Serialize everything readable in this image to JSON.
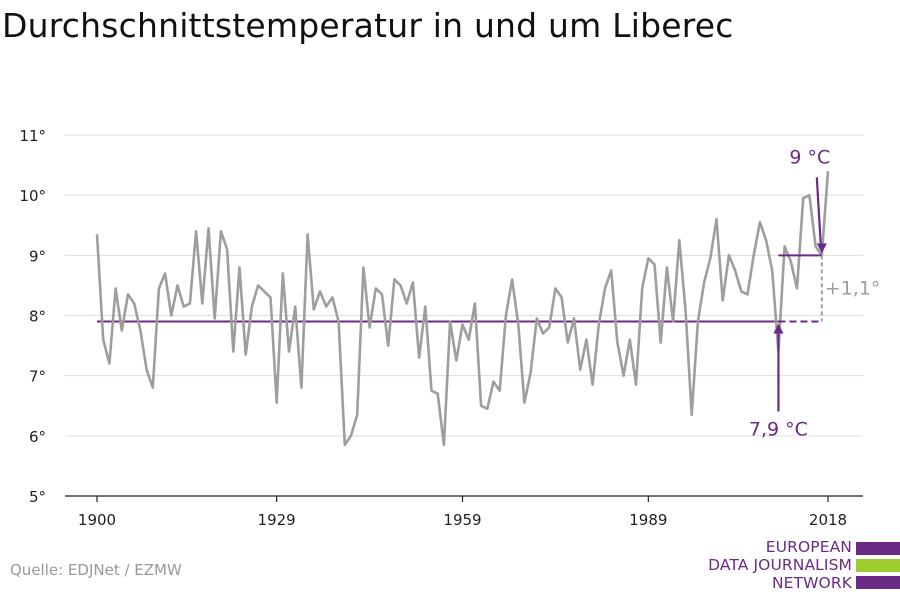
{
  "title": "Durchschnittstemperatur in und um Liberec",
  "source": "Quelle: EDJNet / EZMW",
  "logo": {
    "lines": [
      "EUROPEAN",
      "DATA JOURNALISM",
      "NETWORK"
    ],
    "colors": [
      "#6b2a86",
      "#9ccc30",
      "#6b2a86"
    ]
  },
  "colors": {
    "series": "#9e9e9e",
    "accent": "#6b2a86",
    "diff": "#9e9e9e",
    "grid": "#dddddd",
    "axis": "#222222"
  },
  "chart_data": {
    "type": "line",
    "title": "Durchschnittstemperatur in und um Liberec",
    "xlabel": "",
    "ylabel": "",
    "xlim": [
      1900,
      2018
    ],
    "ylim": [
      5,
      11
    ],
    "x_ticks": [
      1900,
      1929,
      1959,
      1989,
      2018
    ],
    "x_tick_labels": [
      "1900",
      "1929",
      "1959",
      "1989",
      "2018"
    ],
    "y_ticks": [
      5,
      6,
      7,
      8,
      9,
      10,
      11
    ],
    "y_tick_labels": [
      "5°",
      "6°",
      "7°",
      "8°",
      "9°",
      "10°",
      "11°"
    ],
    "grid": true,
    "series": [
      {
        "x": [
          1900,
          1901,
          1902,
          1903,
          1904,
          1905,
          1906,
          1907,
          1908,
          1909,
          1910,
          1911,
          1912,
          1913,
          1914,
          1915,
          1916,
          1917,
          1918,
          1919,
          1920,
          1921,
          1922,
          1923,
          1924,
          1925,
          1926,
          1927,
          1928,
          1929,
          1930,
          1931,
          1932,
          1933,
          1934,
          1935,
          1936,
          1937,
          1938,
          1939,
          1940,
          1941,
          1942,
          1943,
          1944,
          1945,
          1946,
          1947,
          1948,
          1949,
          1950,
          1951,
          1952,
          1953,
          1954,
          1955,
          1956,
          1957,
          1958,
          1959,
          1960,
          1961,
          1962,
          1963,
          1964,
          1965,
          1966,
          1967,
          1968,
          1969,
          1970,
          1971,
          1972,
          1973,
          1974,
          1975,
          1976,
          1977,
          1978,
          1979,
          1980,
          1981,
          1982,
          1983,
          1984,
          1985,
          1986,
          1987,
          1988,
          1989,
          1990,
          1991,
          1992,
          1993,
          1994,
          1995,
          1996,
          1997,
          1998,
          1999,
          2000,
          2001,
          2002,
          2003,
          2004,
          2005,
          2006,
          2007,
          2008,
          2009,
          2010,
          2011,
          2012,
          2013,
          2014,
          2015,
          2016,
          2017,
          2018
        ],
        "y": [
          9.35,
          7.6,
          7.2,
          8.45,
          7.75,
          8.35,
          8.2,
          7.75,
          7.1,
          6.8,
          8.45,
          8.7,
          8.0,
          8.5,
          8.15,
          8.2,
          9.4,
          8.2,
          9.45,
          7.95,
          9.4,
          9.1,
          7.4,
          8.8,
          7.35,
          8.15,
          8.5,
          8.4,
          8.3,
          6.55,
          8.7,
          7.4,
          8.15,
          6.8,
          9.35,
          8.1,
          8.4,
          8.15,
          8.3,
          7.9,
          5.85,
          6.0,
          6.35,
          8.8,
          7.8,
          8.45,
          8.35,
          7.5,
          8.6,
          8.5,
          8.2,
          8.55,
          7.3,
          8.15,
          6.75,
          6.7,
          5.85,
          7.9,
          7.25,
          7.85,
          7.6,
          8.2,
          6.5,
          6.45,
          6.9,
          6.75,
          8.0,
          8.6,
          7.85,
          6.55,
          7.05,
          7.95,
          7.7,
          7.8,
          8.45,
          8.3,
          7.55,
          7.95,
          7.1,
          7.6,
          6.85,
          7.85,
          8.45,
          8.75,
          7.55,
          7.0,
          7.6,
          6.85,
          8.45,
          8.95,
          8.85,
          7.55,
          8.8,
          7.9,
          9.25,
          8.1,
          6.35,
          7.9,
          8.55,
          8.95,
          9.6,
          8.25,
          9.0,
          8.75,
          8.4,
          8.35,
          9.0,
          9.55,
          9.25,
          8.75,
          7.4,
          9.15,
          8.9,
          8.45,
          9.95,
          10.0,
          9.15,
          9.0,
          10.4
        ]
      }
    ],
    "annotations": {
      "baseline_value": 7.9,
      "baseline_label": "7,9 °C",
      "baseline_from": 1900,
      "baseline_dashed_from": 2010,
      "recent_value": 9.0,
      "recent_label": "9 °C",
      "recent_from": 2010,
      "end_x": 2017,
      "diff_label": "+1,1°"
    }
  }
}
